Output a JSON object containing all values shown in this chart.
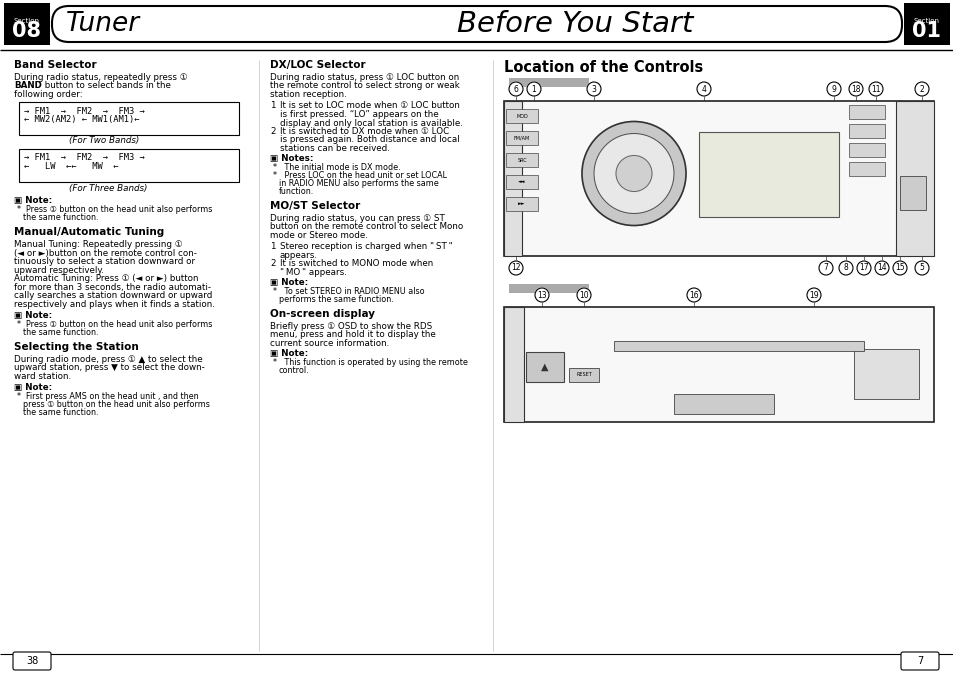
{
  "bg_color": "#ffffff",
  "section_left_num": "08",
  "section_right_num": "01",
  "section_label": "Section",
  "title_left": "Tuner",
  "title_right": "Before You Start",
  "page_num_left": "38",
  "page_num_right": "7",
  "col3_heading1": "Location of the Controls"
}
